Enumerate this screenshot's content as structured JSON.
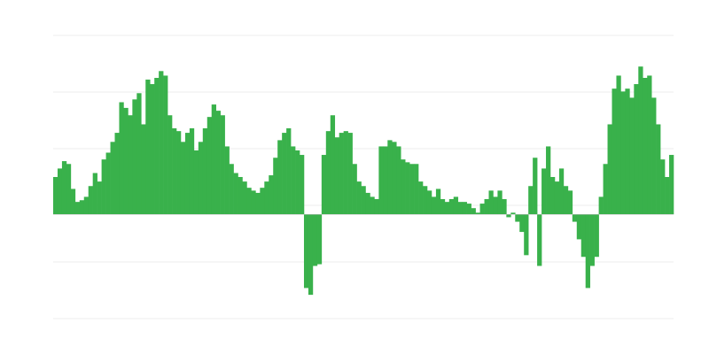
{
  "chart_data": {
    "type": "bar",
    "title": "",
    "xlabel": "",
    "ylabel": "",
    "grid": true,
    "legend": "none",
    "ylim": [
      -1.84,
      3.16
    ],
    "gridlines": [
      3.16,
      2.16,
      1.16,
      0.16,
      -0.84,
      -1.84
    ],
    "colors": {
      "bar": "#39b14b",
      "grid": "#ececec",
      "baseline": "#bbbbbb"
    },
    "values": [
      0.66,
      0.81,
      0.94,
      0.89,
      0.45,
      0.22,
      0.25,
      0.31,
      0.5,
      0.73,
      0.58,
      0.97,
      1.09,
      1.28,
      1.44,
      1.98,
      1.88,
      1.75,
      2.03,
      2.14,
      1.59,
      2.38,
      2.3,
      2.41,
      2.53,
      2.45,
      1.75,
      1.52,
      1.47,
      1.28,
      1.44,
      1.52,
      1.13,
      1.28,
      1.52,
      1.72,
      1.94,
      1.83,
      1.75,
      1.2,
      0.89,
      0.73,
      0.66,
      0.58,
      0.47,
      0.42,
      0.38,
      0.47,
      0.58,
      0.69,
      1.0,
      1.31,
      1.44,
      1.52,
      1.2,
      1.13,
      1.05,
      -1.3,
      -1.42,
      -0.91,
      -0.88,
      1.05,
      1.47,
      1.75,
      1.36,
      1.44,
      1.47,
      1.44,
      0.89,
      0.58,
      0.5,
      0.38,
      0.31,
      0.27,
      1.2,
      1.2,
      1.31,
      1.28,
      1.2,
      0.97,
      0.92,
      0.89,
      0.89,
      0.58,
      0.5,
      0.42,
      0.31,
      0.45,
      0.27,
      0.22,
      0.27,
      0.31,
      0.22,
      0.22,
      0.19,
      0.11,
      0.03,
      0.19,
      0.27,
      0.42,
      0.31,
      0.42,
      0.27,
      -0.05,
      0.03,
      -0.13,
      -0.31,
      -0.72,
      0.5,
      1.0,
      -0.91,
      0.81,
      1.2,
      0.66,
      0.58,
      0.81,
      0.5,
      0.42,
      -0.13,
      -0.44,
      -0.75,
      -1.3,
      -0.91,
      -0.75,
      0.31,
      0.89,
      1.59,
      2.22,
      2.45,
      2.17,
      2.22,
      2.06,
      2.3,
      2.61,
      2.41,
      2.45,
      2.06,
      1.59,
      0.97,
      0.66,
      1.05
    ]
  }
}
